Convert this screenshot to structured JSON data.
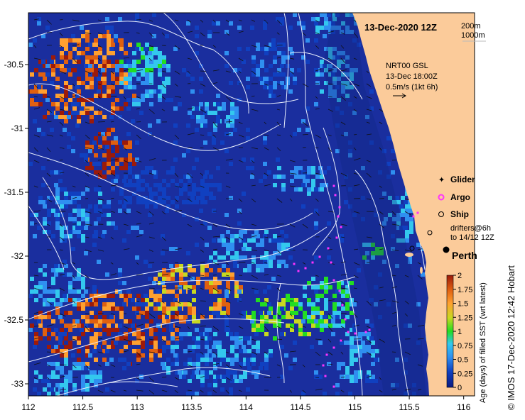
{
  "title": "13-Dec-2020 12Z",
  "depth_legend": [
    "200m",
    "1000m"
  ],
  "current_info": {
    "source": "NRT00 GSL",
    "time": "13-Dec 18:00Z",
    "scale": "0.5m/s (1kt 6h)"
  },
  "legend": {
    "glider": "Glider",
    "argo": "Argo",
    "ship": "Ship",
    "drifters_line1": "drifters@6h",
    "drifters_line2": "to 14/12 12Z"
  },
  "city": "Perth",
  "colorbar": {
    "label": "Age (days) of filled SST (wrt latest)",
    "ticks": [
      "0",
      "0.25",
      "0.5",
      "0.75",
      "1",
      "1.25",
      "1.5",
      "1.75",
      "2"
    ],
    "colors": [
      "#0a1a80",
      "#1040c0",
      "#2f8ff0",
      "#33c8ee",
      "#22dd22",
      "#c8d820",
      "#ffa030",
      "#e06010",
      "#9c1a0a"
    ]
  },
  "credit": "© IMOS 17-Dec-2020 12:42 Hobart",
  "x_ticks": [
    "112",
    "112.5",
    "113",
    "113.5",
    "114",
    "114.5",
    "115",
    "115.5",
    "116"
  ],
  "y_ticks": [
    "-30.5",
    "-31",
    "-31.5",
    "-32",
    "-32.5",
    "-33"
  ],
  "colors": {
    "ocean_base": "#1a2e9e",
    "land": "#fbcb9a",
    "contour": "#e8eefc",
    "glider": "#ff33ff"
  }
}
